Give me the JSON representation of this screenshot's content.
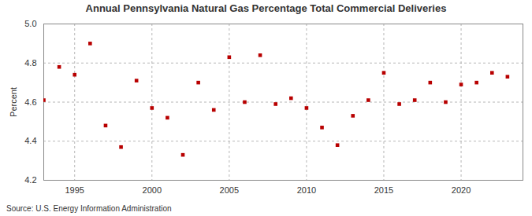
{
  "chart_data": {
    "type": "scatter",
    "title": "Annual Pennsylvania Natural Gas Percentage Total Commercial Deliveries",
    "source": "Source: U.S. Energy Information Administration",
    "y_label": "Percent",
    "x": [
      1993,
      1994,
      1995,
      1996,
      1997,
      1998,
      1999,
      2000,
      2001,
      2002,
      2003,
      2004,
      2005,
      2006,
      2007,
      2008,
      2009,
      2010,
      2011,
      2012,
      2013,
      2014,
      2015,
      2016,
      2017,
      2018,
      2019,
      2020,
      2021,
      2022,
      2023
    ],
    "values": [
      4.61,
      4.78,
      4.74,
      4.9,
      4.48,
      4.37,
      4.71,
      4.57,
      4.52,
      4.33,
      4.7,
      4.56,
      4.83,
      4.6,
      4.84,
      4.59,
      4.62,
      4.57,
      4.47,
      4.38,
      4.53,
      4.61,
      4.75,
      4.59,
      4.61,
      4.7,
      4.6,
      4.69,
      4.7,
      4.75,
      4.73
    ],
    "color": "#b80000",
    "marker": "square",
    "xlim": [
      1993,
      2024
    ],
    "xticks": [
      1995,
      2000,
      2005,
      2010,
      2015,
      2020
    ],
    "ylim": [
      4.2,
      5.0
    ],
    "yticks": [
      {
        "value": 4.2,
        "label": "4.2"
      },
      {
        "value": 4.4,
        "label": "4.4"
      },
      {
        "value": 4.6,
        "label": "4.6"
      },
      {
        "value": 4.8,
        "label": "4.8"
      },
      {
        "value": 5.0,
        "label": "5.0"
      }
    ],
    "grid": true
  }
}
